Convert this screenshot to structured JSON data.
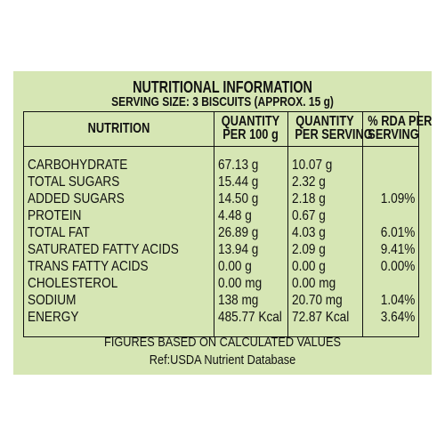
{
  "title": "NUTRITIONAL INFORMATION",
  "serving_size": "SERVING SIZE: 3 BISCUITS (APPROX. 15 g)",
  "headers": {
    "nutrition": "NUTRITION",
    "per100_line1": "QUANTITY",
    "per100_line2": "PER 100 g",
    "perserv_line1": "QUANTITY",
    "perserv_line2": "PER SERVING",
    "rda_line1": "% RDA PER",
    "rda_line2": "SERVING"
  },
  "rows": [
    {
      "name": "CARBOHYDRATE",
      "per100": "67.13 g",
      "perserv": "10.07 g",
      "rda": ""
    },
    {
      "name": "TOTAL SUGARS",
      "per100": "15.44 g",
      "perserv": "2.32 g",
      "rda": ""
    },
    {
      "name": "ADDED SUGARS",
      "per100": "14.50 g",
      "perserv": "2.18 g",
      "rda": "1.09%"
    },
    {
      "name": "PROTEIN",
      "per100": "4.48 g",
      "perserv": "0.67 g",
      "rda": ""
    },
    {
      "name": "TOTAL FAT",
      "per100": "26.89 g",
      "perserv": "4.03 g",
      "rda": "6.01%"
    },
    {
      "name": " SATURATED FATTY ACIDS",
      "per100": "13.94 g",
      "perserv": "2.09 g",
      "rda": "9.41%"
    },
    {
      "name": "TRANS FATTY ACIDS",
      "per100": "0.00 g",
      "perserv": "0.00 g",
      "rda": "0.00%"
    },
    {
      "name": "CHOLESTEROL",
      "per100": "0.00 mg",
      "perserv": "0.00 mg",
      "rda": ""
    },
    {
      "name": "SODIUM",
      "per100": "138 mg",
      "perserv": "20.70 mg",
      "rda": "1.04%"
    },
    {
      "name": "ENERGY",
      "per100": "485.77 Kcal",
      "perserv": "72.87 Kcal",
      "rda": "3.64%"
    }
  ],
  "footnote": "FIGURES BASED ON CALCULATED VALUES",
  "reference": "Ref:USDA Nutrient Database",
  "colors": {
    "panel": "#d6e6b4",
    "text": "#111111"
  }
}
